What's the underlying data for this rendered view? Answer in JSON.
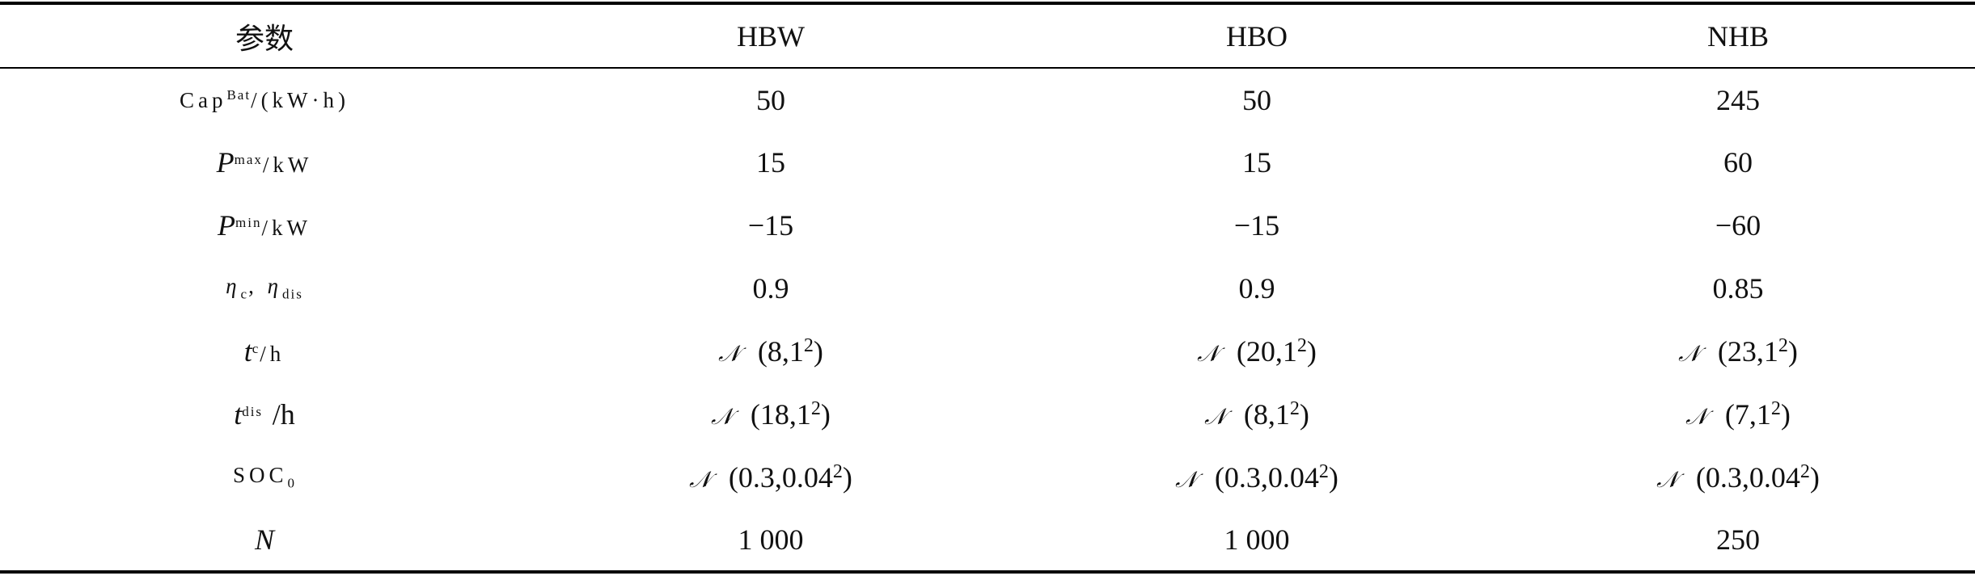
{
  "table": {
    "header": [
      "参数",
      "HBW",
      "HBO",
      "NHB"
    ],
    "rows": [
      {
        "label": {
          "main": "Cap",
          "sup": "Bat",
          "unit": "/(kW·h)"
        },
        "cells": [
          "50",
          "50",
          "245"
        ]
      },
      {
        "label": {
          "main": "P",
          "sup": "max",
          "unit": "/kW"
        },
        "cells": [
          "15",
          "15",
          "60"
        ]
      },
      {
        "label": {
          "main": "P",
          "sup": "min",
          "unit": "/kW"
        },
        "cells": [
          "−15",
          "−15",
          "−60"
        ]
      },
      {
        "label": {
          "main": "η",
          "sub": "c",
          "sep": ",",
          "main2": "η",
          "sub2": "dis"
        },
        "cells": [
          "0.9",
          "0.9",
          "0.85"
        ]
      },
      {
        "label": {
          "main": "t",
          "sup": "c",
          "unit": "/h"
        },
        "cells": [
          {
            "dist": "𝒩",
            "open": "(8,1",
            "exp": "2",
            "close": ")"
          },
          {
            "dist": "𝒩",
            "open": "(20,1",
            "exp": "2",
            "close": ")"
          },
          {
            "dist": "𝒩",
            "open": "(23,1",
            "exp": "2",
            "close": ")"
          }
        ]
      },
      {
        "label": {
          "main": "t",
          "sup": "dis",
          "unit": "/h"
        },
        "cells": [
          {
            "dist": "𝒩",
            "open": "(18,1",
            "exp": "2",
            "close": ")"
          },
          {
            "dist": "𝒩",
            "open": "(8,1",
            "exp": "2",
            "close": ")"
          },
          {
            "dist": "𝒩",
            "open": "(7,1",
            "exp": "2",
            "close": ")"
          }
        ]
      },
      {
        "label": {
          "main": "SOC",
          "sub": "0"
        },
        "cells": [
          {
            "dist": "𝒩",
            "open": "(0.3,0.04",
            "exp": "2",
            "close": ")"
          },
          {
            "dist": "𝒩",
            "open": "(0.3,0.04",
            "exp": "2",
            "close": ")"
          },
          {
            "dist": "𝒩",
            "open": "(0.3,0.04",
            "exp": "2",
            "close": ")"
          }
        ]
      },
      {
        "label": {
          "main": "N"
        },
        "cells": [
          "1 000",
          "1 000",
          "250"
        ]
      }
    ]
  }
}
